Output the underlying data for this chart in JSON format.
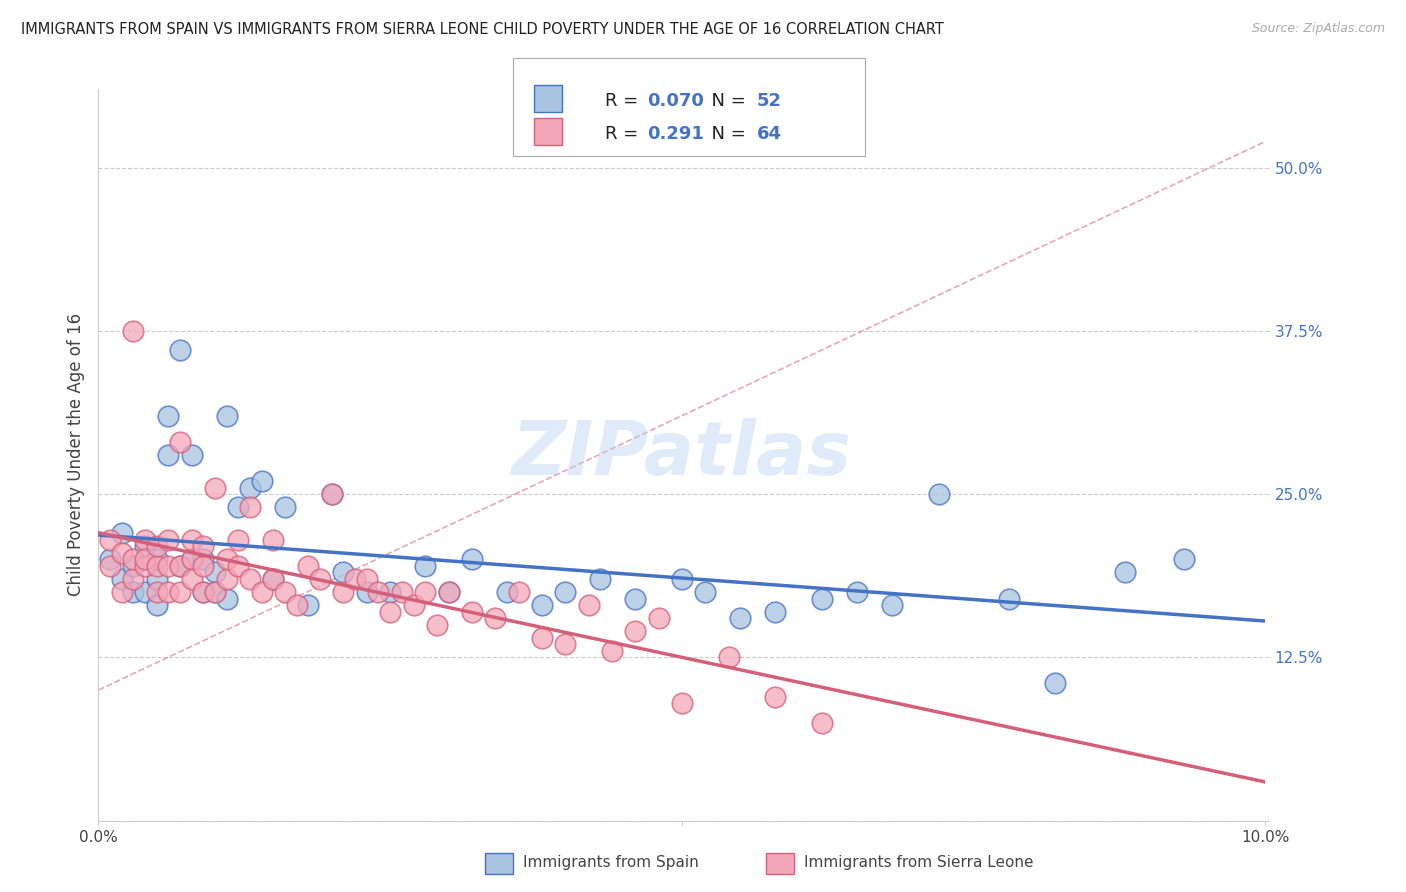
{
  "title": "IMMIGRANTS FROM SPAIN VS IMMIGRANTS FROM SIERRA LEONE CHILD POVERTY UNDER THE AGE OF 16 CORRELATION CHART",
  "source": "Source: ZipAtlas.com",
  "ylabel": "Child Poverty Under the Age of 16",
  "legend1_label": "Immigrants from Spain",
  "legend2_label": "Immigrants from Sierra Leone",
  "R1": 0.07,
  "N1": 52,
  "R2": 0.291,
  "N2": 64,
  "color_spain": "#a8c4e0",
  "color_sierra": "#f4a7b9",
  "color_spain_line": "#4472c4",
  "color_sierra_line": "#d45f7a",
  "watermark": "ZIPatlas",
  "xlim": [
    0.0,
    0.1
  ],
  "ylim": [
    0.0,
    0.55
  ],
  "spain_x": [
    0.001,
    0.002,
    0.002,
    0.003,
    0.003,
    0.004,
    0.004,
    0.005,
    0.005,
    0.005,
    0.006,
    0.006,
    0.007,
    0.007,
    0.008,
    0.008,
    0.009,
    0.009,
    0.01,
    0.01,
    0.011,
    0.011,
    0.012,
    0.013,
    0.014,
    0.015,
    0.016,
    0.018,
    0.02,
    0.021,
    0.023,
    0.025,
    0.028,
    0.03,
    0.032,
    0.035,
    0.038,
    0.04,
    0.043,
    0.046,
    0.05,
    0.052,
    0.055,
    0.058,
    0.062,
    0.065,
    0.068,
    0.072,
    0.078,
    0.082,
    0.088,
    0.093
  ],
  "spain_y": [
    0.2,
    0.185,
    0.22,
    0.175,
    0.195,
    0.21,
    0.175,
    0.185,
    0.2,
    0.165,
    0.28,
    0.31,
    0.195,
    0.36,
    0.28,
    0.2,
    0.175,
    0.2,
    0.19,
    0.175,
    0.17,
    0.31,
    0.24,
    0.255,
    0.26,
    0.185,
    0.24,
    0.165,
    0.25,
    0.19,
    0.175,
    0.175,
    0.195,
    0.175,
    0.2,
    0.175,
    0.165,
    0.175,
    0.185,
    0.17,
    0.185,
    0.175,
    0.155,
    0.16,
    0.17,
    0.175,
    0.165,
    0.25,
    0.17,
    0.105,
    0.19,
    0.2
  ],
  "sierra_x": [
    0.001,
    0.001,
    0.002,
    0.002,
    0.003,
    0.003,
    0.003,
    0.004,
    0.004,
    0.004,
    0.005,
    0.005,
    0.005,
    0.006,
    0.006,
    0.006,
    0.007,
    0.007,
    0.007,
    0.008,
    0.008,
    0.008,
    0.009,
    0.009,
    0.009,
    0.01,
    0.01,
    0.011,
    0.011,
    0.012,
    0.012,
    0.013,
    0.013,
    0.014,
    0.015,
    0.015,
    0.016,
    0.017,
    0.018,
    0.019,
    0.02,
    0.021,
    0.022,
    0.023,
    0.024,
    0.025,
    0.026,
    0.027,
    0.028,
    0.029,
    0.03,
    0.032,
    0.034,
    0.036,
    0.038,
    0.04,
    0.042,
    0.044,
    0.046,
    0.048,
    0.05,
    0.054,
    0.058,
    0.062
  ],
  "sierra_y": [
    0.195,
    0.215,
    0.175,
    0.205,
    0.185,
    0.2,
    0.375,
    0.195,
    0.215,
    0.2,
    0.175,
    0.195,
    0.21,
    0.175,
    0.195,
    0.215,
    0.195,
    0.175,
    0.29,
    0.2,
    0.185,
    0.215,
    0.175,
    0.195,
    0.21,
    0.255,
    0.175,
    0.185,
    0.2,
    0.195,
    0.215,
    0.185,
    0.24,
    0.175,
    0.215,
    0.185,
    0.175,
    0.165,
    0.195,
    0.185,
    0.25,
    0.175,
    0.185,
    0.185,
    0.175,
    0.16,
    0.175,
    0.165,
    0.175,
    0.15,
    0.175,
    0.16,
    0.155,
    0.175,
    0.14,
    0.135,
    0.165,
    0.13,
    0.145,
    0.155,
    0.09,
    0.125,
    0.095,
    0.075
  ]
}
